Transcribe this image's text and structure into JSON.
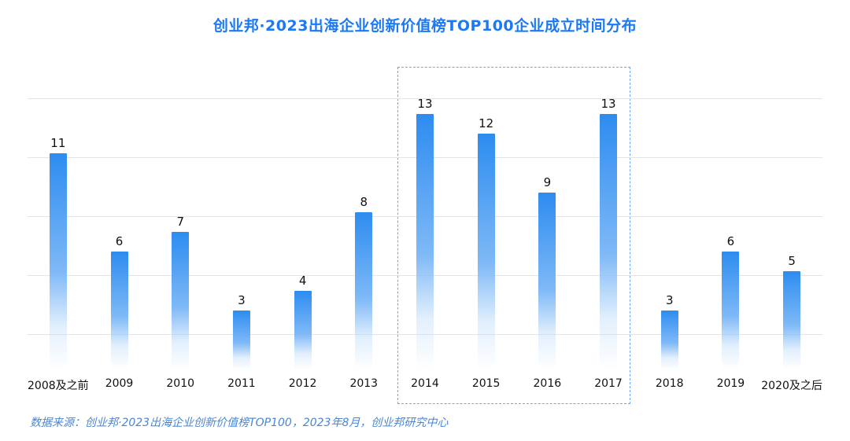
{
  "title": "创业邦·2023出海企业创新价值榜TOP100企业成立时间分布",
  "source_note": "数据来源：创业邦·2023出海企业创新价值榜TOP100，2023年8月，创业邦研究中心",
  "colors": {
    "title": "#1b79f7",
    "source": "#4a86d8",
    "bar_gradient_top": "#2d8cf0",
    "bar_gradient_mid": "#7fb9f7",
    "gridline": "#e4e4e4",
    "highlight_border": "#6aa7f4",
    "value_label": "#111111"
  },
  "chart_data": {
    "type": "bar",
    "title": "创业邦·2023出海企业创新价值榜TOP100企业成立时间分布",
    "categories": [
      "2008及之前",
      "2009",
      "2010",
      "2011",
      "2012",
      "2013",
      "2014",
      "2015",
      "2016",
      "2017",
      "2018",
      "2019",
      "2020及之后"
    ],
    "values": [
      11,
      6,
      7,
      3,
      4,
      8,
      13,
      12,
      9,
      13,
      3,
      6,
      5
    ],
    "xlabel": "",
    "ylabel": "",
    "ylim": [
      0,
      14
    ],
    "grid": true,
    "legend": "none",
    "highlighted_categories": [
      "2014",
      "2015",
      "2016",
      "2017"
    ],
    "annotation": "dashed rectangle around 2014–2017 bars"
  }
}
